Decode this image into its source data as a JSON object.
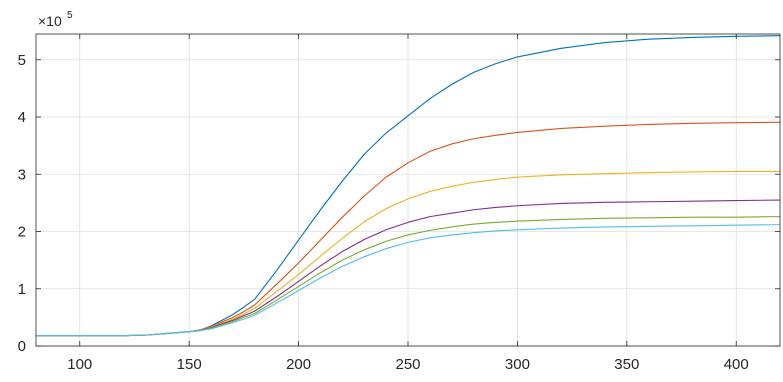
{
  "chart_data": {
    "type": "line",
    "title": "",
    "xlabel": "",
    "ylabel": "",
    "xlim": [
      80,
      420
    ],
    "ylim": [
      0,
      5.45
    ],
    "y_exponent_label": "×10",
    "y_exponent_power": "5",
    "grid": true,
    "xticks": [
      100,
      150,
      200,
      250,
      300,
      350,
      400
    ],
    "xtick_labels": [
      "100",
      "150",
      "200",
      "250",
      "300",
      "350",
      "400"
    ],
    "yticks": [
      0,
      1,
      2,
      3,
      4,
      5
    ],
    "ytick_labels": [
      "0",
      "1",
      "2",
      "3",
      "4",
      "5"
    ],
    "x": [
      80,
      100,
      120,
      130,
      140,
      150,
      155,
      160,
      170,
      175,
      180,
      190,
      200,
      210,
      220,
      230,
      240,
      250,
      260,
      270,
      280,
      290,
      300,
      320,
      340,
      360,
      380,
      400,
      420
    ],
    "series": [
      {
        "color": "#0072BD",
        "values": [
          0.18,
          0.18,
          0.18,
          0.19,
          0.22,
          0.25,
          0.28,
          0.35,
          0.55,
          0.68,
          0.82,
          1.32,
          1.85,
          2.38,
          2.88,
          3.35,
          3.72,
          4.02,
          4.32,
          4.57,
          4.78,
          4.93,
          5.05,
          5.2,
          5.3,
          5.36,
          5.39,
          5.41,
          5.42
        ]
      },
      {
        "color": "#D95319",
        "values": [
          0.18,
          0.18,
          0.18,
          0.19,
          0.22,
          0.25,
          0.28,
          0.34,
          0.5,
          0.6,
          0.72,
          1.08,
          1.45,
          1.85,
          2.25,
          2.62,
          2.95,
          3.2,
          3.4,
          3.53,
          3.62,
          3.68,
          3.73,
          3.8,
          3.84,
          3.87,
          3.89,
          3.9,
          3.91
        ]
      },
      {
        "color": "#EDB120",
        "values": [
          0.18,
          0.18,
          0.18,
          0.19,
          0.22,
          0.25,
          0.27,
          0.33,
          0.47,
          0.56,
          0.66,
          0.95,
          1.25,
          1.57,
          1.88,
          2.17,
          2.4,
          2.57,
          2.7,
          2.79,
          2.86,
          2.91,
          2.95,
          2.99,
          3.01,
          3.03,
          3.04,
          3.05,
          3.05
        ]
      },
      {
        "color": "#7E2F8E",
        "values": [
          0.18,
          0.18,
          0.18,
          0.19,
          0.22,
          0.25,
          0.27,
          0.32,
          0.45,
          0.53,
          0.61,
          0.86,
          1.13,
          1.4,
          1.65,
          1.86,
          2.03,
          2.16,
          2.26,
          2.32,
          2.38,
          2.42,
          2.45,
          2.49,
          2.51,
          2.52,
          2.53,
          2.54,
          2.55
        ]
      },
      {
        "color": "#77AC30",
        "values": [
          0.18,
          0.18,
          0.18,
          0.19,
          0.22,
          0.25,
          0.27,
          0.31,
          0.43,
          0.5,
          0.57,
          0.8,
          1.04,
          1.28,
          1.5,
          1.68,
          1.83,
          1.94,
          2.02,
          2.08,
          2.13,
          2.16,
          2.18,
          2.21,
          2.23,
          2.24,
          2.25,
          2.25,
          2.26
        ]
      },
      {
        "color": "#4DBEEE",
        "values": [
          0.18,
          0.18,
          0.18,
          0.19,
          0.22,
          0.25,
          0.27,
          0.3,
          0.41,
          0.47,
          0.54,
          0.75,
          0.97,
          1.19,
          1.39,
          1.56,
          1.7,
          1.81,
          1.89,
          1.94,
          1.98,
          2.01,
          2.03,
          2.06,
          2.08,
          2.09,
          2.1,
          2.11,
          2.12
        ]
      }
    ]
  }
}
